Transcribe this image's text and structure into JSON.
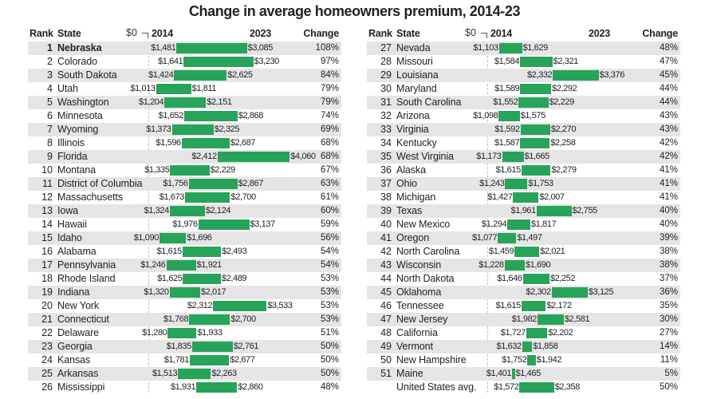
{
  "chart_data": {
    "type": "bar",
    "title": "Change in average homeowners premium, 2014-23",
    "headers": {
      "rank": "Rank",
      "state": "State",
      "zero": "$0",
      "y2014": "2014",
      "y2023": "2023",
      "change": "Change"
    },
    "bar_color": "#27a35a",
    "row_shade_color": "#e5e5e5",
    "rows": [
      {
        "rank": "1",
        "state": "Nebraska",
        "v2014": "$1,481",
        "v2023": "$3,085",
        "change": "108%"
      },
      {
        "rank": "2",
        "state": "Colorado",
        "v2014": "$1,641",
        "v2023": "$3,230",
        "change": "97%"
      },
      {
        "rank": "3",
        "state": "South Dakota",
        "v2014": "$1,424",
        "v2023": "$2,625",
        "change": "84%"
      },
      {
        "rank": "4",
        "state": "Utah",
        "v2014": "$1,013",
        "v2023": "$1,811",
        "change": "79%"
      },
      {
        "rank": "5",
        "state": "Washington",
        "v2014": "$1,204",
        "v2023": "$2,151",
        "change": "79%"
      },
      {
        "rank": "6",
        "state": "Minnesota",
        "v2014": "$1,652",
        "v2023": "$2,868",
        "change": "74%"
      },
      {
        "rank": "7",
        "state": "Wyoming",
        "v2014": "$1,373",
        "v2023": "$2,325",
        "change": "69%"
      },
      {
        "rank": "8",
        "state": "Illinois",
        "v2014": "$1,596",
        "v2023": "$2,687",
        "change": "68%"
      },
      {
        "rank": "9",
        "state": "Florida",
        "v2014": "$2,412",
        "v2023": "$4,060",
        "change": "68%"
      },
      {
        "rank": "10",
        "state": "Montana",
        "v2014": "$1,335",
        "v2023": "$2,229",
        "change": "67%"
      },
      {
        "rank": "11",
        "state": "District of Columbia",
        "v2014": "$1,756",
        "v2023": "$2,867",
        "change": "63%"
      },
      {
        "rank": "12",
        "state": "Massachusetts",
        "v2014": "$1,673",
        "v2023": "$2,700",
        "change": "61%"
      },
      {
        "rank": "13",
        "state": "Iowa",
        "v2014": "$1,324",
        "v2023": "$2,124",
        "change": "60%"
      },
      {
        "rank": "14",
        "state": "Hawaii",
        "v2014": "$1,976",
        "v2023": "$3,137",
        "change": "59%"
      },
      {
        "rank": "15",
        "state": "Idaho",
        "v2014": "$1,090",
        "v2023": "$1,696",
        "change": "56%"
      },
      {
        "rank": "16",
        "state": "Alabama",
        "v2014": "$1,615",
        "v2023": "$2,493",
        "change": "54%"
      },
      {
        "rank": "17",
        "state": "Pennsylvania",
        "v2014": "$1,246",
        "v2023": "$1,921",
        "change": "54%"
      },
      {
        "rank": "18",
        "state": "Rhode Island",
        "v2014": "$1,625",
        "v2023": "$2,489",
        "change": "53%"
      },
      {
        "rank": "19",
        "state": "Indiana",
        "v2014": "$1,320",
        "v2023": "$2,017",
        "change": "53%"
      },
      {
        "rank": "20",
        "state": "New York",
        "v2014": "$2,312",
        "v2023": "$3,533",
        "change": "53%"
      },
      {
        "rank": "21",
        "state": "Connecticut",
        "v2014": "$1,768",
        "v2023": "$2,700",
        "change": "53%"
      },
      {
        "rank": "22",
        "state": "Delaware",
        "v2014": "$1,280",
        "v2023": "$1,933",
        "change": "51%"
      },
      {
        "rank": "23",
        "state": "Georgia",
        "v2014": "$1,835",
        "v2023": "$2,761",
        "change": "50%"
      },
      {
        "rank": "24",
        "state": "Kansas",
        "v2014": "$1,781",
        "v2023": "$2,677",
        "change": "50%"
      },
      {
        "rank": "25",
        "state": "Arkansas",
        "v2014": "$1,513",
        "v2023": "$2,263",
        "change": "50%"
      },
      {
        "rank": "26",
        "state": "Mississippi",
        "v2014": "$1,931",
        "v2023": "$2,860",
        "change": "48%"
      },
      {
        "rank": "27",
        "state": "Nevada",
        "v2014": "$1,103",
        "v2023": "$1,629",
        "change": "48%"
      },
      {
        "rank": "28",
        "state": "Missouri",
        "v2014": "$1,584",
        "v2023": "$2,321",
        "change": "47%"
      },
      {
        "rank": "29",
        "state": "Louisiana",
        "v2014": "$2,332",
        "v2023": "$3,376",
        "change": "45%"
      },
      {
        "rank": "30",
        "state": "Maryland",
        "v2014": "$1,589",
        "v2023": "$2,292",
        "change": "44%"
      },
      {
        "rank": "31",
        "state": "South Carolina",
        "v2014": "$1,552",
        "v2023": "$2,229",
        "change": "44%"
      },
      {
        "rank": "32",
        "state": "Arizona",
        "v2014": "$1,098",
        "v2023": "$1,575",
        "change": "43%"
      },
      {
        "rank": "33",
        "state": "Virginia",
        "v2014": "$1,592",
        "v2023": "$2,270",
        "change": "43%"
      },
      {
        "rank": "34",
        "state": "Kentucky",
        "v2014": "$1,587",
        "v2023": "$2,258",
        "change": "42%"
      },
      {
        "rank": "35",
        "state": "West Virginia",
        "v2014": "$1,173",
        "v2023": "$1,665",
        "change": "42%"
      },
      {
        "rank": "36",
        "state": "Alaska",
        "v2014": "$1,615",
        "v2023": "$2,279",
        "change": "41%"
      },
      {
        "rank": "37",
        "state": "Ohio",
        "v2014": "$1,243",
        "v2023": "$1,753",
        "change": "41%"
      },
      {
        "rank": "38",
        "state": "Michigan",
        "v2014": "$1,427",
        "v2023": "$2,007",
        "change": "41%"
      },
      {
        "rank": "39",
        "state": "Texas",
        "v2014": "$1,961",
        "v2023": "$2,755",
        "change": "40%"
      },
      {
        "rank": "40",
        "state": "New Mexico",
        "v2014": "$1,294",
        "v2023": "$1,817",
        "change": "40%"
      },
      {
        "rank": "41",
        "state": "Oregon",
        "v2014": "$1,077",
        "v2023": "$1,497",
        "change": "39%"
      },
      {
        "rank": "42",
        "state": "North Carolina",
        "v2014": "$1,459",
        "v2023": "$2,021",
        "change": "38%"
      },
      {
        "rank": "43",
        "state": "Wisconsin",
        "v2014": "$1,228",
        "v2023": "$1,690",
        "change": "38%"
      },
      {
        "rank": "44",
        "state": "North Dakota",
        "v2014": "$1,646",
        "v2023": "$2,252",
        "change": "37%"
      },
      {
        "rank": "45",
        "state": "Oklahoma",
        "v2014": "$2,302",
        "v2023": "$3,125",
        "change": "36%"
      },
      {
        "rank": "46",
        "state": "Tennessee",
        "v2014": "$1,615",
        "v2023": "$2,172",
        "change": "35%"
      },
      {
        "rank": "47",
        "state": "New Jersey",
        "v2014": "$1,982",
        "v2023": "$2,581",
        "change": "30%"
      },
      {
        "rank": "48",
        "state": "California",
        "v2014": "$1,727",
        "v2023": "$2,202",
        "change": "27%"
      },
      {
        "rank": "49",
        "state": "Vermont",
        "v2014": "$1,632",
        "v2023": "$1,858",
        "change": "14%"
      },
      {
        "rank": "50",
        "state": "New Hampshire",
        "v2014": "$1,752",
        "v2023": "$1,942",
        "change": "11%"
      },
      {
        "rank": "51",
        "state": "Maine",
        "v2014": "$1,401",
        "v2023": "$1,465",
        "change": "5%"
      },
      {
        "rank": "",
        "state": "United States avg.",
        "v2014": "$1,572",
        "v2023": "$2,358",
        "change": "50%"
      }
    ]
  }
}
